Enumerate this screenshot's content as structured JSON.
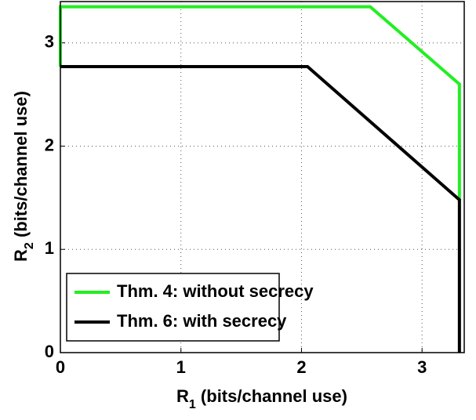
{
  "chart_data": {
    "type": "line",
    "xlabel": {
      "main": "R",
      "sub": "1",
      "rest": " (bits/channel use)"
    },
    "ylabel": {
      "main": "R",
      "sub": "2",
      "rest": " (bits/channel use)"
    },
    "xlim": [
      0,
      3.35
    ],
    "ylim": [
      0,
      3.4
    ],
    "xticks": [
      0,
      1,
      2,
      3
    ],
    "yticks": [
      0,
      1,
      2,
      3
    ],
    "grid": true,
    "legend": "lower left",
    "series": [
      {
        "name": "Thm. 4: without secrecy",
        "color": "#22ee22",
        "x": [
          0,
          0,
          2.57,
          3.31,
          3.31
        ],
        "values": [
          2.77,
          3.35,
          3.35,
          2.6,
          1.48
        ]
      },
      {
        "name": "Thm. 6: with secrecy",
        "color": "#000000",
        "x": [
          0,
          2.05,
          3.31,
          3.31
        ],
        "values": [
          2.77,
          2.77,
          1.48,
          0
        ]
      }
    ]
  }
}
